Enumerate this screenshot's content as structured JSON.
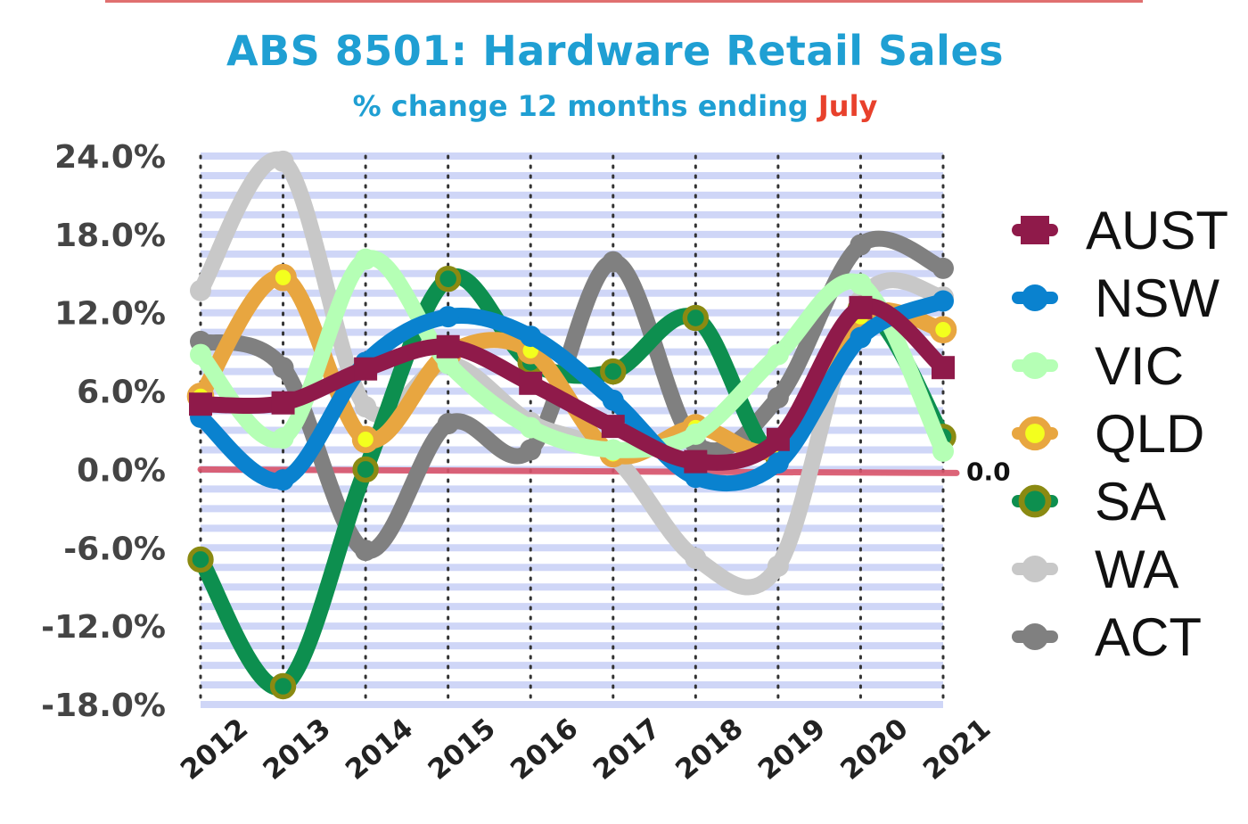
{
  "title": "ABS 8501: Hardware Retail Sales",
  "subtitle_prefix": "% change 12 months ending",
  "subtitle_highlight": "July",
  "subtitle_highlight_color": "#e8412c",
  "title_color": "#1f9fd3",
  "reference_line_label": "0.0",
  "reference_line_color": "#d9546a",
  "band_color": "#cfd6f7",
  "chart_data": {
    "type": "line",
    "x": [
      "2012",
      "2013",
      "2014",
      "2015",
      "2016",
      "2017",
      "2018",
      "2019",
      "2020",
      "2021"
    ],
    "ylim": [
      -18,
      24
    ],
    "yticks": [
      -18,
      -12,
      -6,
      0,
      6,
      12,
      18,
      24
    ],
    "ytick_labels": [
      "-18.0%",
      "-12.0%",
      "-6.0%",
      "0.0%",
      "6.0%",
      "12.0%",
      "18.0%",
      "24.0%"
    ],
    "grid": "horizontal-bands-and-dotted-verticals",
    "legend_position": "right",
    "series": [
      {
        "name": "ACT",
        "color": "#808080",
        "marker": "circle",
        "values": [
          9.8,
          7.8,
          -6.2,
          3.5,
          1.5,
          15.9,
          2.0,
          5.5,
          17.2,
          15.4
        ]
      },
      {
        "name": "WA",
        "color": "#c8c8c8",
        "marker": "circle",
        "values": [
          13.7,
          23.6,
          4.8,
          8.1,
          3.6,
          1.0,
          -6.8,
          -7.4,
          12.9,
          13.2
        ]
      },
      {
        "name": "SA",
        "color": "#0d8f4f",
        "marker": "ring",
        "values": [
          -6.9,
          -16.6,
          0.0,
          14.6,
          8.2,
          7.5,
          11.6,
          1.0,
          12.3,
          2.5
        ]
      },
      {
        "name": "QLD",
        "color": "#e8a640",
        "marker": "dot",
        "values": [
          5.6,
          14.7,
          2.3,
          8.9,
          9.1,
          1.2,
          3.2,
          1.7,
          11.7,
          10.7
        ]
      },
      {
        "name": "VIC",
        "color": "#b5ffb5",
        "marker": "circle",
        "values": [
          8.8,
          2.4,
          16.1,
          8.1,
          3.2,
          1.5,
          2.7,
          8.8,
          14.2,
          1.4
        ]
      },
      {
        "name": "NSW",
        "color": "#0a82cf",
        "marker": "circle",
        "values": [
          4.0,
          -0.8,
          8.2,
          11.7,
          10.2,
          5.3,
          -0.6,
          0.5,
          10.1,
          12.9
        ]
      },
      {
        "name": "AUST",
        "color": "#8f1a4a",
        "marker": "square",
        "values": [
          5.0,
          5.1,
          7.7,
          9.4,
          6.6,
          3.3,
          0.6,
          2.3,
          12.4,
          7.8
        ]
      }
    ]
  }
}
